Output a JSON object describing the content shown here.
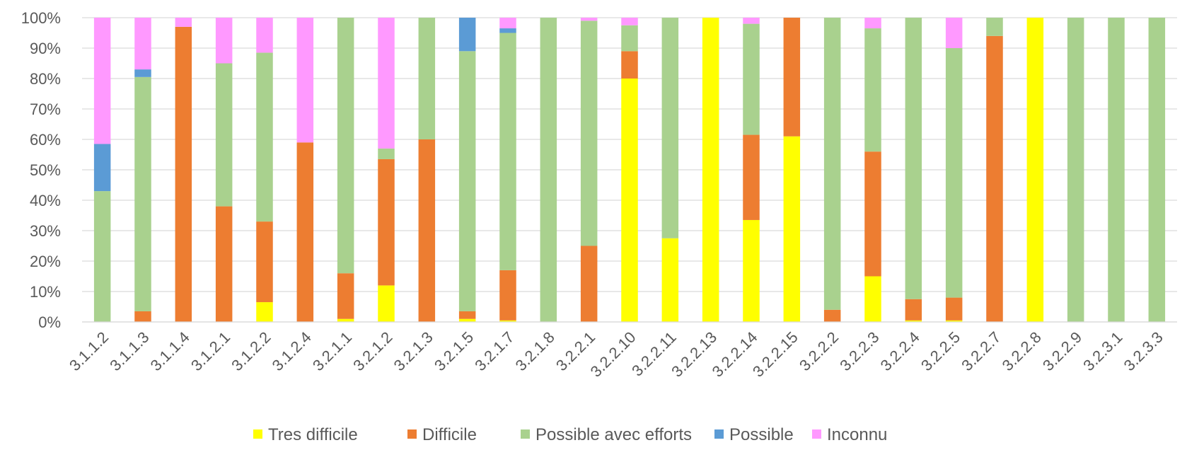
{
  "chart_data": {
    "type": "bar",
    "stacked": "percent",
    "categories": [
      "3.1.1.2",
      "3.1.1.3",
      "3.1.1.4",
      "3.1.2.1",
      "3.1.2.2",
      "3.1.2.4",
      "3.2.1.1",
      "3.2.1.2",
      "3.2.1.3",
      "3.2.1.5",
      "3.2.1.7",
      "3.2.1.8",
      "3.2.2.1",
      "3.2.2.10",
      "3.2.2.11",
      "3.2.2.13",
      "3.2.2.14",
      "3.2.2.15",
      "3.2.2.2",
      "3.2.2.3",
      "3.2.2.4",
      "3.2.2.5",
      "3.2.2.7",
      "3.2.2.8",
      "3.2.2.9",
      "3.2.3.1",
      "3.2.3.3"
    ],
    "series": [
      {
        "name": "Tres difficile",
        "color": "#FFFF00",
        "values": [
          0,
          0,
          0,
          0,
          6.5,
          0,
          1,
          12,
          0,
          1,
          0.5,
          0,
          0,
          80,
          27.5,
          100,
          33.5,
          61,
          0,
          15,
          0.5,
          0.5,
          0,
          100,
          0,
          0,
          0
        ]
      },
      {
        "name": "Difficile",
        "color": "#ED7D31",
        "values": [
          0,
          3.5,
          97,
          38,
          26.5,
          59,
          15,
          41.5,
          60,
          2.5,
          16.5,
          0,
          25,
          9,
          0,
          0,
          28,
          39,
          4,
          41,
          7,
          7.5,
          94,
          0,
          0,
          0,
          0
        ]
      },
      {
        "name": "Possible avec efforts",
        "color": "#A9D18E",
        "values": [
          43,
          77,
          0,
          47,
          55.5,
          0,
          84,
          3.5,
          40,
          85.5,
          78,
          100,
          74,
          8.5,
          72.5,
          0,
          36.5,
          0,
          96,
          40.5,
          92.5,
          82,
          6,
          0,
          100,
          100,
          100
        ]
      },
      {
        "name": "Possible",
        "color": "#5B9BD5",
        "values": [
          15.5,
          2.5,
          0,
          0,
          0,
          0,
          0,
          0,
          0,
          11,
          1.5,
          0,
          0,
          0,
          0,
          0,
          0,
          0,
          0,
          0,
          0,
          0,
          0,
          0,
          0,
          0,
          0
        ]
      },
      {
        "name": "Inconnu",
        "color": "#FF99FF",
        "values": [
          41.5,
          17,
          3,
          15,
          11.5,
          41,
          0,
          43,
          0,
          0,
          3.5,
          0,
          1,
          2.5,
          0,
          0,
          2,
          0,
          0,
          3.5,
          0,
          10,
          0,
          0,
          0,
          0,
          0
        ]
      }
    ],
    "yticks": [
      "0%",
      "10%",
      "20%",
      "30%",
      "40%",
      "50%",
      "60%",
      "70%",
      "80%",
      "90%",
      "100%"
    ],
    "ylim": [
      0,
      100
    ],
    "grid": true,
    "legend_position": "bottom",
    "title": "",
    "xlabel": "",
    "ylabel": ""
  }
}
